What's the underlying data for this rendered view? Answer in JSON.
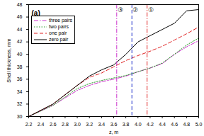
{
  "chart_data": {
    "type": "line",
    "title": "(a)",
    "x_label": "z, m",
    "y_label": "Shell thickness, mm",
    "xlim": [
      2.2,
      5.0
    ],
    "xticks": [
      2.2,
      2.4,
      2.6,
      2.8,
      {
        "value": 3,
        "label": "3.0"
      },
      3.2,
      3.4,
      3.6,
      3.8,
      {
        "value": 4,
        "label": "4.0"
      },
      4.2,
      4.4,
      4.6,
      4.8,
      {
        "value": 5,
        "label": "5.0"
      }
    ],
    "ylim": [
      30,
      48
    ],
    "yticks": [
      30,
      32,
      34,
      36,
      38,
      40,
      42,
      44,
      46,
      48
    ],
    "legend": "top-left",
    "x": [
      2.2,
      2.6,
      3.0,
      3.2,
      3.4,
      3.6,
      3.8,
      4.0,
      4.2,
      4.4,
      4.6,
      4.8,
      5.0
    ],
    "series": [
      {
        "name": "three pairs",
        "color": "#cc33cc",
        "line_style": "dashdot",
        "values": [
          30,
          31.8,
          34.2,
          35.0,
          35.6,
          36.0,
          36.5,
          37.2,
          37.8,
          38.5,
          40.0,
          41.2,
          42.2
        ]
      },
      {
        "name": "two pairs",
        "color": "#2a9d2a",
        "line_style": "dotted",
        "values": [
          30,
          31.8,
          34.5,
          35.3,
          35.8,
          36.2,
          36.6,
          37.2,
          37.8,
          38.6,
          40.0,
          41.5,
          42.6
        ]
      },
      {
        "name": "one pair",
        "color": "#e02020",
        "line_style": "dashed",
        "values": [
          30,
          32.0,
          35.0,
          36.3,
          37.0,
          38.0,
          39.0,
          39.8,
          40.5,
          41.3,
          42.3,
          43.3,
          44.4
        ]
      },
      {
        "name": "zero pair",
        "color": "#000000",
        "line_style": "solid",
        "values": [
          30,
          32.0,
          35.0,
          36.5,
          37.5,
          38.3,
          40.0,
          42.0,
          43.0,
          44.0,
          45.0,
          47.0,
          47.2
        ]
      }
    ],
    "annotations": [
      {
        "x": 3.65,
        "label": "③",
        "color": "#cc33cc",
        "line_style": "dashdot"
      },
      {
        "x": 3.9,
        "label": "②",
        "color": "#2233cc",
        "line_style": "dashed"
      },
      {
        "x": 4.15,
        "label": "①",
        "color": "#e02020",
        "line_style": "dashdot"
      }
    ]
  }
}
